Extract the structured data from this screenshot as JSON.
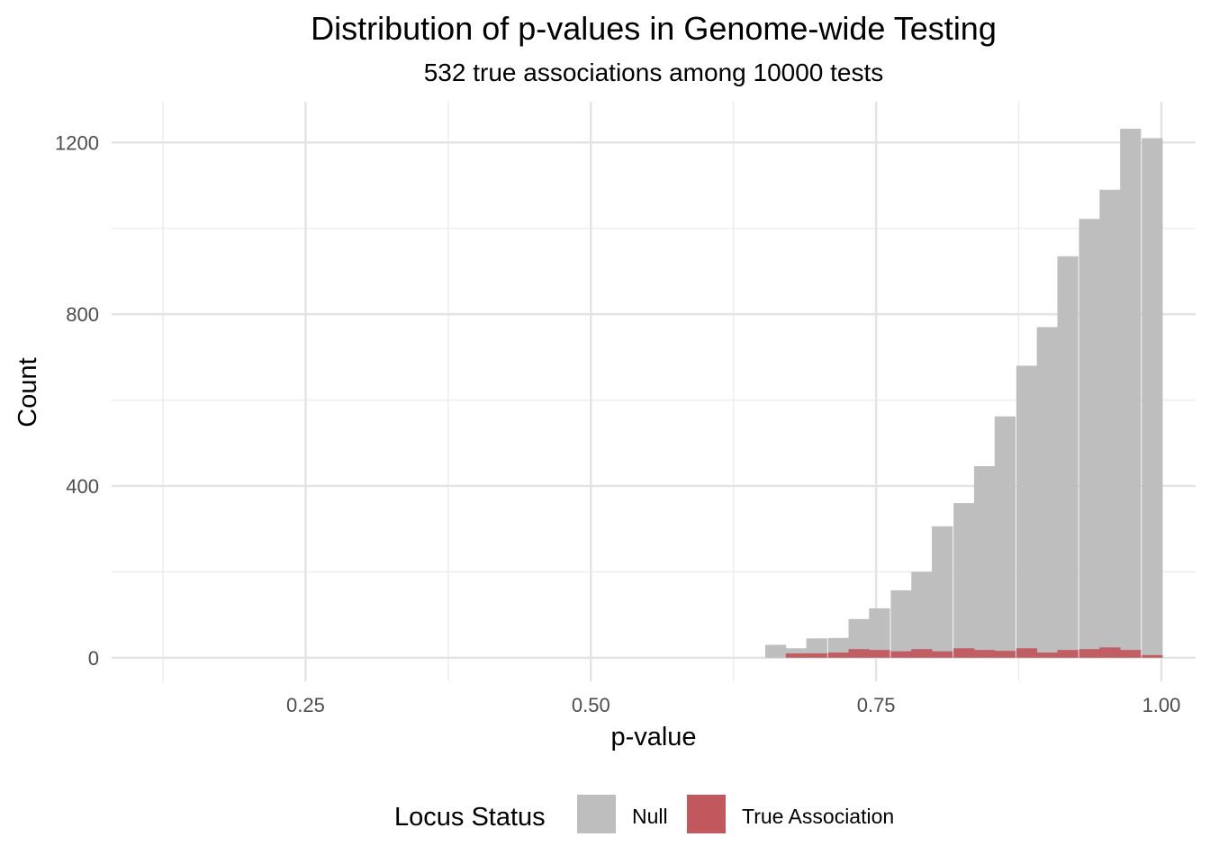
{
  "chart_data": {
    "type": "bar",
    "title": "Distribution of p-values in Genome-wide Testing",
    "subtitle": "532 true associations among 10000 tests",
    "xlabel": "p-value",
    "ylabel": "Count",
    "xlim": [
      0.08,
      1.03
    ],
    "ylim": [
      -55,
      1295
    ],
    "x_ticks": [
      0.25,
      0.5,
      0.75,
      1.0
    ],
    "x_tick_labels": [
      "0.25",
      "0.50",
      "0.75",
      "1.00"
    ],
    "y_ticks": [
      0,
      400,
      800,
      1200
    ],
    "y_tick_labels": [
      "0",
      "400",
      "800",
      "1200"
    ],
    "grid": true,
    "legend": {
      "title": "Locus Status",
      "position": "bottom",
      "items": [
        {
          "label": "Null",
          "color": "#bebebe"
        },
        {
          "label": "True Association",
          "color": "#c0585e"
        }
      ]
    },
    "bin_width": 0.0183,
    "series": [
      {
        "name": "Null",
        "color": "#bebebe",
        "x": [
          0.662,
          0.68,
          0.698,
          0.717,
          0.735,
          0.753,
          0.772,
          0.79,
          0.808,
          0.827,
          0.845,
          0.863,
          0.882,
          0.9,
          0.918,
          0.937,
          0.955,
          0.973,
          0.992
        ],
        "values": [
          30,
          22,
          45,
          46,
          90,
          115,
          157,
          200,
          306,
          360,
          446,
          562,
          680,
          770,
          935,
          1022,
          1090,
          1232,
          1210
        ]
      },
      {
        "name": "True Association",
        "color": "#c0585e",
        "x": [
          0.68,
          0.698,
          0.717,
          0.735,
          0.753,
          0.772,
          0.79,
          0.808,
          0.827,
          0.845,
          0.863,
          0.882,
          0.9,
          0.918,
          0.937,
          0.955,
          0.973,
          0.992
        ],
        "values": [
          10,
          10,
          12,
          20,
          18,
          15,
          20,
          15,
          22,
          18,
          16,
          22,
          12,
          18,
          20,
          24,
          18,
          6
        ]
      }
    ]
  }
}
